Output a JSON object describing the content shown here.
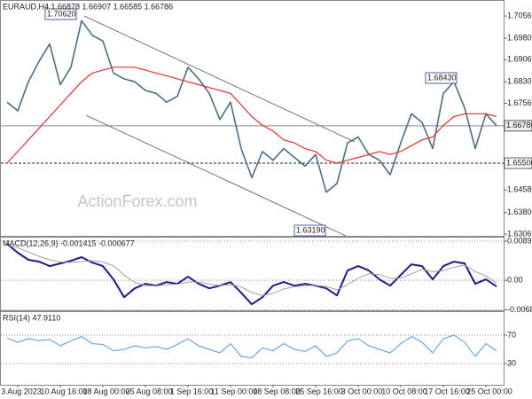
{
  "chart_data": [
    {
      "type": "line",
      "title": "EURAUD,H4 1.66878 1.66907 1.66585 1.66786",
      "watermark": "ActionForex.com",
      "x": [
        0,
        1,
        2,
        3,
        4,
        5,
        6,
        7,
        8,
        9,
        10,
        11,
        12,
        13,
        14,
        15,
        16,
        17,
        18,
        19,
        20,
        21,
        22,
        23,
        24,
        25,
        26,
        27,
        28,
        29,
        30,
        31,
        32,
        33,
        34,
        35,
        36,
        37,
        38,
        39,
        40,
        41,
        42,
        43,
        44,
        45,
        46
      ],
      "xlim": [
        0,
        46
      ],
      "ylim": [
        1.63,
        1.7102
      ],
      "grid": false,
      "yticks": [
        {
          "value": 1.7056,
          "label": "1.70560"
        },
        {
          "value": 1.698,
          "label": "1.69800"
        },
        {
          "value": 1.6906,
          "label": "1.69060"
        },
        {
          "value": 1.683,
          "label": "1.68300"
        },
        {
          "value": 1.6756,
          "label": "1.67560"
        },
        {
          "value": 1.6458,
          "label": "1.64580"
        },
        {
          "value": 1.638,
          "label": "1.63800"
        },
        {
          "value": 1.6306,
          "label": "1.63060"
        }
      ],
      "levels": [
        1.66786,
        {
          "value": 1.655,
          "label": "1.65500"
        }
      ],
      "level_styles": [
        "solid",
        "dashed"
      ],
      "annotations": [
        "1.70620",
        "1.68430",
        "1.63190"
      ],
      "series": [
        {
          "color": "#4a6e88",
          "width": 1.6,
          "values": [
            1.676,
            1.673,
            1.683,
            1.69,
            1.696,
            1.682,
            1.688,
            1.704,
            1.699,
            1.697,
            1.686,
            1.684,
            1.683,
            1.68,
            1.679,
            1.676,
            1.678,
            1.688,
            1.684,
            1.679,
            1.67,
            1.676,
            1.66,
            1.65,
            1.659,
            1.656,
            1.66,
            1.657,
            1.654,
            1.658,
            1.645,
            1.648,
            1.662,
            1.664,
            1.658,
            1.656,
            1.651,
            1.662,
            1.672,
            1.669,
            1.66,
            1.679,
            1.683,
            1.674,
            1.66,
            1.672,
            1.6679
          ]
        },
        {
          "color": "#e03030",
          "width": 1.2,
          "values": [
            1.655,
            1.659,
            1.663,
            1.667,
            1.671,
            1.675,
            1.679,
            1.683,
            1.686,
            1.687,
            1.688,
            1.688,
            1.688,
            1.687,
            1.686,
            1.685,
            1.684,
            1.683,
            1.682,
            1.681,
            1.68,
            1.679,
            1.675,
            1.671,
            1.668,
            1.666,
            1.663,
            1.662,
            1.66,
            1.659,
            1.656,
            1.655,
            1.656,
            1.657,
            1.658,
            1.659,
            1.658,
            1.659,
            1.661,
            1.663,
            1.664,
            1.668,
            1.671,
            1.672,
            1.672,
            1.672,
            1.671
          ]
        }
      ]
    },
    {
      "type": "line",
      "title": "MACD(12,26,9) -0.001415 -0.000677",
      "x": [
        0,
        1,
        2,
        3,
        4,
        5,
        6,
        7,
        8,
        9,
        10,
        11,
        12,
        13,
        14,
        15,
        16,
        17,
        18,
        19,
        20,
        21,
        22,
        23,
        24,
        25,
        26,
        27,
        28,
        29,
        30,
        31,
        32,
        33,
        34,
        35,
        36,
        37,
        38,
        39,
        40,
        41,
        42,
        43,
        44,
        45,
        46
      ],
      "xlim": [
        0,
        46
      ],
      "ylim": [
        -0.0069,
        0.0098
      ],
      "grid": true,
      "yticks": [
        0.008986,
        {
          "value": 0,
          "label": "0.00"
        },
        -0.006816
      ],
      "series": [
        {
          "color": "#1c1c8a",
          "width": 2,
          "values": [
            0.00837,
            0.00633,
            0.0047,
            0.00429,
            0.00327,
            0.00388,
            0.00449,
            0.00531,
            0.00408,
            0.00327,
            0.0002,
            -0.00388,
            -0.00184,
            -0.00082,
            -0.00123,
            -0.00041,
            -0.00082,
            0.00082,
            -0.00082,
            -0.00184,
            -0.00123,
            -0.00041,
            -0.00286,
            -0.00551,
            -0.00388,
            -0.00123,
            -0.00041,
            -0.00123,
            -0.00082,
            -0.00123,
            -0.00184,
            -0.00347,
            0.00225,
            0.00327,
            0.00225,
            0.0002,
            -0.00123,
            0.00123,
            0.00368,
            0.00327,
            0.0002,
            0.00327,
            0.00429,
            0.00388,
            -0.00082,
            0.0002,
            -0.00142
          ]
        },
        {
          "color": "#a0a0a0",
          "width": 1,
          "values": [
            0.008,
            0.0075,
            0.0065,
            0.0055,
            0.0047,
            0.0042,
            0.0041,
            0.0043,
            0.0045,
            0.0042,
            0.0033,
            0.0012,
            -0.0005,
            -0.0012,
            -0.0013,
            -0.001,
            -0.0009,
            -0.0004,
            -0.0004,
            -0.0009,
            -0.0012,
            -0.001,
            -0.0015,
            -0.0028,
            -0.0035,
            -0.003,
            -0.002,
            -0.0015,
            -0.0012,
            -0.0012,
            -0.0014,
            -0.0022,
            -0.001,
            0.0005,
            0.0015,
            0.0013,
            0.0005,
            0.0005,
            0.0015,
            0.0025,
            0.002,
            0.0022,
            0.003,
            0.0035,
            0.002,
            0.001,
            -0.00068
          ]
        }
      ]
    },
    {
      "type": "line",
      "title": "RSI(14) 47.9110",
      "x": [
        0,
        1,
        2,
        3,
        4,
        5,
        6,
        7,
        8,
        9,
        10,
        11,
        12,
        13,
        14,
        15,
        16,
        17,
        18,
        19,
        20,
        21,
        22,
        23,
        24,
        25,
        26,
        27,
        28,
        29,
        30,
        31,
        32,
        33,
        34,
        35,
        36,
        37,
        38,
        39,
        40,
        41,
        42,
        43,
        44,
        45,
        46
      ],
      "xlim": [
        0,
        46
      ],
      "ylim": [
        0,
        100
      ],
      "grid": true,
      "yticks": [
        70,
        30
      ],
      "xticks": [
        {
          "value": 1,
          "label": "3 Aug 2023"
        },
        {
          "value": 5,
          "label": "10 Aug 16:00"
        },
        {
          "value": 9,
          "label": "18 Aug 00:00"
        },
        {
          "value": 13,
          "label": "25 Aug 08:00"
        },
        {
          "value": 17,
          "label": "1 Sep 16:00"
        },
        {
          "value": 21,
          "label": "11 Sep 00:00"
        },
        {
          "value": 25,
          "label": "18 Sep 08:00"
        },
        {
          "value": 29,
          "label": "25 Sep 16:00"
        },
        {
          "value": 33,
          "label": "3 Oct 00:00"
        },
        {
          "value": 37,
          "label": "10 Oct 08:00"
        },
        {
          "value": 41,
          "label": "17 Oct 16:00"
        },
        {
          "value": 45,
          "label": "25 Oct 00:00"
        }
      ],
      "series": [
        {
          "color": "#4e9be0",
          "width": 1,
          "values": [
            66,
            60,
            65,
            62,
            64,
            55,
            62,
            68,
            58,
            57,
            48,
            50,
            55,
            52,
            54,
            50,
            57,
            65,
            55,
            50,
            45,
            58,
            40,
            38,
            52,
            48,
            58,
            50,
            47,
            55,
            40,
            45,
            62,
            65,
            55,
            50,
            45,
            58,
            68,
            60,
            45,
            65,
            70,
            60,
            40,
            58,
            47.911
          ]
        }
      ]
    }
  ]
}
